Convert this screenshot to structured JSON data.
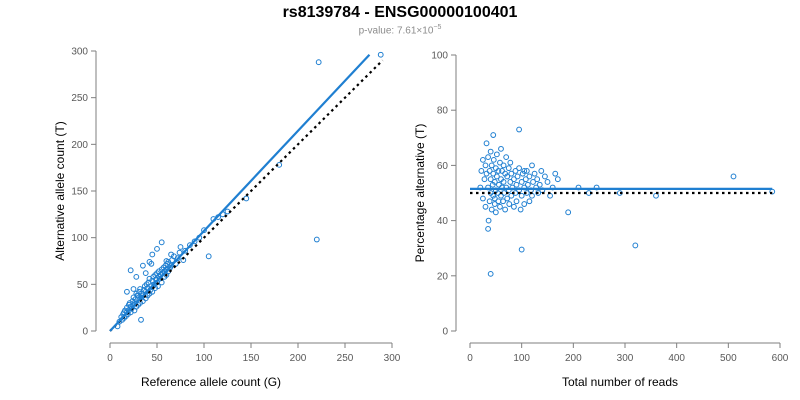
{
  "header": {
    "title": "rs8139784 - ENSG00000100401",
    "pvalue_prefix": "p-value: 7.61×10",
    "pvalue_exponent": "−5"
  },
  "colors": {
    "points": "#1f7fd1",
    "fit": "#1f7fd1",
    "reference": "#000000"
  },
  "chart_data": [
    {
      "type": "scatter",
      "xlabel": "Reference allele count (G)",
      "ylabel": "Alternative allele count (T)",
      "xlim": [
        0,
        300
      ],
      "ylim": [
        0,
        300
      ],
      "xticks": [
        0,
        50,
        100,
        150,
        200,
        250,
        300
      ],
      "yticks": [
        0,
        50,
        100,
        150,
        200,
        250,
        300
      ],
      "fit_line": {
        "x": [
          0,
          276
        ],
        "y": [
          0,
          296
        ]
      },
      "reference_line": {
        "x": [
          0,
          290
        ],
        "y": [
          0,
          290
        ]
      },
      "x": [
        8,
        10,
        12,
        13,
        14,
        15,
        15,
        16,
        17,
        18,
        18,
        19,
        20,
        20,
        21,
        22,
        22,
        23,
        24,
        25,
        25,
        26,
        26,
        27,
        28,
        28,
        29,
        30,
        30,
        31,
        32,
        32,
        33,
        34,
        35,
        35,
        36,
        37,
        38,
        38,
        39,
        40,
        40,
        41,
        42,
        42,
        43,
        44,
        45,
        45,
        46,
        47,
        48,
        48,
        49,
        50,
        50,
        51,
        52,
        52,
        53,
        54,
        55,
        55,
        56,
        57,
        58,
        58,
        59,
        60,
        60,
        61,
        62,
        62,
        64,
        65,
        66,
        68,
        70,
        72,
        74,
        75,
        78,
        80,
        85,
        90,
        95,
        100,
        105,
        110,
        115,
        120,
        125,
        145,
        180,
        220,
        222,
        288,
        22,
        28,
        35,
        45,
        50,
        38,
        42,
        18,
        25,
        30,
        55,
        60,
        65,
        33,
        44
      ],
      "y": [
        5,
        10,
        15,
        12,
        18,
        20,
        14,
        22,
        16,
        25,
        20,
        18,
        28,
        22,
        30,
        20,
        26,
        24,
        32,
        28,
        36,
        30,
        22,
        34,
        40,
        26,
        38,
        35,
        28,
        42,
        30,
        45,
        36,
        40,
        38,
        32,
        44,
        48,
        35,
        42,
        50,
        38,
        46,
        52,
        40,
        56,
        44,
        48,
        54,
        42,
        58,
        50,
        46,
        60,
        55,
        52,
        62,
        48,
        58,
        64,
        56,
        60,
        66,
        52,
        62,
        68,
        58,
        64,
        70,
        60,
        66,
        72,
        64,
        74,
        68,
        70,
        76,
        80,
        72,
        78,
        84,
        90,
        76,
        86,
        92,
        96,
        100,
        108,
        80,
        120,
        122,
        125,
        128,
        142,
        178,
        98,
        288,
        296,
        65,
        58,
        70,
        82,
        88,
        62,
        74,
        42,
        45,
        38,
        95,
        75,
        82,
        12,
        72
      ]
    },
    {
      "type": "scatter",
      "xlabel": "Total number of reads",
      "ylabel": "Percentage alternative (T)",
      "xlim": [
        0,
        600
      ],
      "ylim": [
        0,
        100
      ],
      "xticks": [
        0,
        100,
        200,
        300,
        400,
        500,
        600
      ],
      "yticks": [
        0,
        20,
        40,
        60,
        80,
        100
      ],
      "fit_line": {
        "x": [
          0,
          585
        ],
        "y": [
          51.5,
          51.5
        ]
      },
      "reference_line": {
        "x": [
          0,
          585
        ],
        "y": [
          50,
          50
        ]
      },
      "x": [
        20,
        22,
        25,
        25,
        28,
        30,
        30,
        32,
        32,
        35,
        35,
        36,
        38,
        38,
        40,
        40,
        40,
        42,
        42,
        44,
        45,
        45,
        46,
        48,
        48,
        50,
        50,
        50,
        52,
        52,
        54,
        55,
        55,
        56,
        58,
        58,
        60,
        60,
        60,
        62,
        62,
        64,
        65,
        65,
        66,
        68,
        68,
        70,
        70,
        72,
        72,
        75,
        75,
        76,
        78,
        78,
        80,
        80,
        82,
        85,
        85,
        88,
        88,
        90,
        90,
        92,
        95,
        95,
        98,
        100,
        100,
        102,
        105,
        105,
        108,
        110,
        110,
        112,
        115,
        115,
        118,
        120,
        120,
        122,
        125,
        128,
        130,
        132,
        135,
        138,
        140,
        145,
        150,
        155,
        160,
        165,
        170,
        190,
        210,
        230,
        245,
        290,
        320,
        360,
        510,
        585,
        40,
        45,
        100,
        105,
        48,
        35,
        95
      ],
      "y": [
        52,
        58,
        48,
        62,
        55,
        60,
        45,
        57,
        68,
        52,
        63,
        40,
        58,
        47,
        55,
        50,
        65,
        44,
        60,
        53,
        49,
        57,
        62,
        46,
        54,
        59,
        51,
        43,
        56,
        64,
        50,
        47,
        58,
        53,
        61,
        45,
        55,
        49,
        66,
        52,
        58,
        47,
        54,
        60,
        50,
        57,
        44,
        52,
        63,
        48,
        56,
        51,
        59,
        46,
        54,
        61,
        49,
        57,
        52,
        55,
        45,
        58,
        50,
        53,
        47,
        56,
        51,
        59,
        44,
        54,
        49,
        57,
        52,
        46,
        55,
        50,
        58,
        53,
        47,
        56,
        51,
        60,
        49,
        54,
        57,
        52,
        55,
        50,
        53,
        58,
        51,
        56,
        54,
        49,
        52,
        57,
        55,
        43,
        52,
        50,
        52,
        50,
        31,
        49,
        56,
        50.5,
        20.7,
        71,
        29.5,
        58,
        48,
        37,
        73
      ]
    }
  ]
}
